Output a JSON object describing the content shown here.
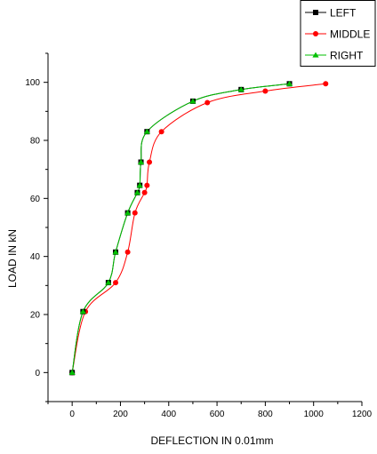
{
  "chart_data": {
    "type": "scatter",
    "title": "",
    "xlabel": "DEFLECTION IN 0.01mm",
    "ylabel": "LOAD IN kN",
    "xlim": [
      -100,
      1200
    ],
    "ylim": [
      -10,
      110
    ],
    "xticks": [
      0,
      200,
      400,
      600,
      800,
      1000,
      1200
    ],
    "yticks": [
      0,
      20,
      40,
      60,
      80,
      100
    ],
    "grid": false,
    "legend_position": "top-right",
    "series": [
      {
        "name": "LEFT",
        "color": "#000000",
        "marker": "square",
        "x": [
          0,
          45,
          150,
          180,
          230,
          270,
          280,
          285,
          310,
          500,
          700,
          900
        ],
        "y": [
          0,
          21,
          31,
          41.5,
          55,
          62,
          64.5,
          72.5,
          83,
          93.5,
          97.5,
          99.5
        ]
      },
      {
        "name": "MIDDLE",
        "color": "#ff0000",
        "marker": "circle",
        "x": [
          0,
          55,
          180,
          230,
          260,
          300,
          310,
          320,
          370,
          560,
          800,
          1050
        ],
        "y": [
          0,
          21,
          31,
          41.5,
          55,
          62,
          64.5,
          72.5,
          83,
          93,
          97,
          99.5
        ]
      },
      {
        "name": "RIGHT",
        "color": "#00c000",
        "marker": "triangle",
        "x": [
          0,
          45,
          150,
          180,
          230,
          270,
          280,
          285,
          310,
          500,
          700,
          900
        ],
        "y": [
          0,
          21,
          31,
          41.5,
          55,
          62,
          64.5,
          72.5,
          83,
          93.5,
          97.5,
          99.5
        ]
      }
    ]
  }
}
